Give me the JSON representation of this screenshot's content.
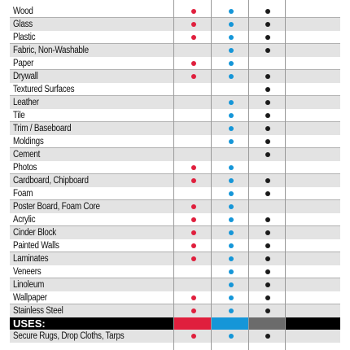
{
  "colors": {
    "red": "#e01f3d",
    "blue": "#1596d8",
    "black": "#1a1a1a",
    "header_gray": "#6b6b6b"
  },
  "columns": [
    "red",
    "blue",
    "black"
  ],
  "materials": [
    {
      "label": "Wood",
      "marks": [
        true,
        true,
        true
      ]
    },
    {
      "label": "Glass",
      "marks": [
        true,
        true,
        true
      ]
    },
    {
      "label": "Plastic",
      "marks": [
        true,
        true,
        true
      ]
    },
    {
      "label": "Fabric, Non-Washable",
      "marks": [
        false,
        true,
        true
      ]
    },
    {
      "label": "Paper",
      "marks": [
        true,
        true,
        false
      ]
    },
    {
      "label": "Drywall",
      "marks": [
        true,
        true,
        true
      ]
    },
    {
      "label": "Textured Surfaces",
      "marks": [
        false,
        false,
        true
      ]
    },
    {
      "label": "Leather",
      "marks": [
        false,
        true,
        true
      ]
    },
    {
      "label": "Tile",
      "marks": [
        false,
        true,
        true
      ]
    },
    {
      "label": "Trim / Baseboard",
      "marks": [
        false,
        true,
        true
      ]
    },
    {
      "label": "Moldings",
      "marks": [
        false,
        true,
        true
      ]
    },
    {
      "label": "Cement",
      "marks": [
        false,
        false,
        true
      ]
    },
    {
      "label": "Photos",
      "marks": [
        true,
        true,
        false
      ]
    },
    {
      "label": "Cardboard, Chipboard",
      "marks": [
        true,
        true,
        true
      ]
    },
    {
      "label": "Foam",
      "marks": [
        false,
        true,
        true
      ]
    },
    {
      "label": "Poster Board, Foam Core",
      "marks": [
        true,
        true,
        false
      ]
    },
    {
      "label": "Acrylic",
      "marks": [
        true,
        true,
        true
      ]
    },
    {
      "label": "Cinder Block",
      "marks": [
        true,
        true,
        true
      ]
    },
    {
      "label": "Painted Walls",
      "marks": [
        true,
        true,
        true
      ]
    },
    {
      "label": "Laminates",
      "marks": [
        true,
        true,
        true
      ]
    },
    {
      "label": "Veneers",
      "marks": [
        false,
        true,
        true
      ]
    },
    {
      "label": "Linoleum",
      "marks": [
        false,
        true,
        true
      ]
    },
    {
      "label": "Wallpaper",
      "marks": [
        true,
        true,
        true
      ]
    },
    {
      "label": "Stainless Steel",
      "marks": [
        true,
        true,
        true
      ]
    }
  ],
  "uses_header": "USES:",
  "uses": [
    {
      "label": "Secure Rugs, Drop Cloths, Tarps",
      "marks": [
        true,
        true,
        true
      ]
    }
  ]
}
